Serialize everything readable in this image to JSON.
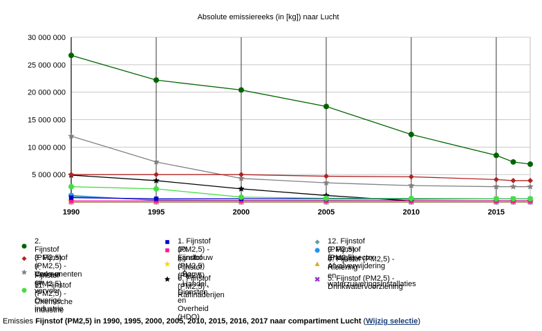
{
  "chart_data": {
    "type": "line",
    "title": "Absolute emissiereeks (in [kg]) naar Lucht",
    "xlabel": "",
    "ylabel": "",
    "x": [
      1990,
      1995,
      2000,
      2005,
      2010,
      2015,
      2016,
      2017
    ],
    "xlim": [
      1990,
      2017
    ],
    "xticks": [
      "1990",
      "1995",
      "2000",
      "2005",
      "2010",
      "2015"
    ],
    "ylim": [
      0,
      30000000
    ],
    "yticks": [
      "30 000 000",
      "25 000 000",
      "20 000 000",
      "15 000 000",
      "10 000 000",
      "5 000 000"
    ],
    "grid": true,
    "legend_position": "bottom",
    "series": [
      {
        "name": "2. Fijnstof (PM2,5) - Verkeer en vervoer",
        "color": "#006400",
        "marker": "circle",
        "values": [
          26700000,
          22200000,
          20400000,
          17400000,
          12300000,
          8500000,
          7300000,
          6900000
        ]
      },
      {
        "name": "3. Fijnstof (PM2,5) - Consumenten",
        "color": "#b22222",
        "marker": "diamond",
        "values": [
          5000000,
          5000000,
          5000000,
          4700000,
          4600000,
          4100000,
          3900000,
          3900000
        ]
      },
      {
        "name": "7. Fijnstof (PM2,5) - Overige industrie",
        "color": "#808080",
        "marker": "star",
        "values": [
          12000000,
          7300000,
          4300000,
          3500000,
          3000000,
          2800000,
          2800000,
          2800000
        ]
      },
      {
        "name": "11. Fijnstof (PM2,5) - Chemische Industrie",
        "color": "#44dd44",
        "marker": "circle",
        "values": [
          2800000,
          2400000,
          900000,
          700000,
          650000,
          600000,
          600000,
          600000
        ]
      },
      {
        "name": "1. Fijnstof (PM2,5) - Landbouw",
        "color": "#0000cc",
        "marker": "square",
        "values": [
          800000,
          600000,
          600000,
          600000,
          550000,
          600000,
          600000,
          600000
        ]
      },
      {
        "name": "10. Fijnstof (PM2,5) - Bouw",
        "color": "#ff1493",
        "marker": "square",
        "values": [
          200000,
          200000,
          200000,
          200000,
          200000,
          200000,
          200000,
          200000
        ]
      },
      {
        "name": "8. Fijnstof (PM2,5) - Handel, Diensten en Overheid (HDO)",
        "color": "#ffd700",
        "marker": "star",
        "values": [
          100000,
          100000,
          100000,
          100000,
          100000,
          100000,
          100000,
          100000
        ]
      },
      {
        "name": "6. Fijnstof (PM2,5) - Raffinaderijen",
        "color": "#000000",
        "marker": "star",
        "values": [
          4900000,
          3900000,
          2400000,
          1200000,
          200000,
          150000,
          150000,
          150000
        ]
      },
      {
        "name": "12. Fijnstof (PM2,5) - Energiesector",
        "color": "#5f9ea0",
        "marker": "diamond",
        "values": [
          1000000,
          400000,
          300000,
          300000,
          250000,
          250000,
          250000,
          250000
        ]
      },
      {
        "name": "9. Fijnstof (PM2,5) - Afvalverwijdering",
        "color": "#1e90ff",
        "marker": "circle",
        "values": [
          1200000,
          300000,
          200000,
          150000,
          100000,
          100000,
          100000,
          100000
        ]
      },
      {
        "name": "4. Fijnstof (PM2,5) - Riolering en waterzuiveringsinstallaties",
        "color": "#daa520",
        "marker": "triangle",
        "values": [
          50000,
          50000,
          50000,
          50000,
          50000,
          50000,
          50000,
          50000
        ]
      },
      {
        "name": "5. Fijnstof (PM2,5) - Drinkwatervoorziening",
        "color": "#9932cc",
        "marker": "cross",
        "values": [
          30000,
          30000,
          30000,
          30000,
          30000,
          30000,
          30000,
          30000
        ]
      }
    ]
  },
  "legend": {
    "col1": [
      {
        "label": "2. Fijnstof (PM2,5) - Verkeer en vervoer",
        "lines": [
          "2. Fijnstof (PM2,5) - Verkeer",
          "en vervoer"
        ],
        "color": "#006400",
        "icon": "circle"
      },
      {
        "label": "3. Fijnstof (PM2,5) - Consumenten",
        "lines": [
          "3. Fijnstof (PM2,5) - Consumenten"
        ],
        "color": "#b22222",
        "icon": "diamond"
      },
      {
        "label": "7. Fijnstof (PM2,5) - Overige industrie",
        "lines": [
          "7. Fijnstof (PM2,5) - Overige",
          "industrie"
        ],
        "color": "#808080",
        "icon": "star"
      },
      {
        "label": "11. Fijnstof (PM2,5) - Chemische Industrie",
        "lines": [
          "11. Fijnstof (PM2,5) - Chemische",
          "Industrie"
        ],
        "color": "#44dd44",
        "icon": "circle"
      }
    ],
    "col2": [
      {
        "label": "1. Fijnstof (PM2,5) - Landbouw",
        "lines": [
          "1. Fijnstof (PM2,5) - Landbouw"
        ],
        "color": "#0000cc",
        "icon": "square"
      },
      {
        "label": "10. Fijnstof (PM2,5) - Bouw",
        "lines": [
          "10. Fijnstof (PM2,5) - Bouw"
        ],
        "color": "#ff1493",
        "icon": "square"
      },
      {
        "label": "8. Fijnstof (PM2,5) - Handel, Diensten en Overheid (HDO)",
        "lines": [
          "8. Fijnstof (PM2,5) - Handel,",
          "Diensten en Overheid (HDO)"
        ],
        "color": "#ffd700",
        "icon": "star"
      },
      {
        "label": "6. Fijnstof (PM2,5) - Raffinaderijen",
        "lines": [
          "6. Fijnstof (PM2,5) - Raffinaderijen"
        ],
        "color": "#000000",
        "icon": "star"
      }
    ],
    "col3": [
      {
        "label": "12. Fijnstof (PM2,5) - Energiesector",
        "lines": [
          "12. Fijnstof (PM2,5) - Energiesector"
        ],
        "color": "#5f9ea0",
        "icon": "diamond"
      },
      {
        "label": "9. Fijnstof (PM2,5) - Afvalverwijdering",
        "lines": [
          "9. Fijnstof (PM2,5) - Afvalverwijdering"
        ],
        "color": "#1e90ff",
        "icon": "circle"
      },
      {
        "label": "4. Fijnstof (PM2,5) - Riolering en waterzuiveringsinstallaties",
        "lines": [
          "4. Fijnstof (PM2,5) - Riolering",
          "en waterzuiveringsinstallaties"
        ],
        "color": "#daa520",
        "icon": "triangle"
      },
      {
        "label": "5. Fijnstof (PM2,5) - Drinkwatervoorziening",
        "lines": [
          "5. Fijnstof (PM2,5) - Drinkwatervoorziening"
        ],
        "color": "#9932cc",
        "icon": "cross"
      }
    ]
  },
  "caption": {
    "prefix": "Emissies ",
    "substance": "Fijnstof (PM2,5)",
    "middle": " in 1990, 1995, 2000, 2005, 2010, 2015, 2016, 2017 naar compartiment ",
    "compartment": "Lucht",
    "paren_open": " (",
    "link_label": "Wijzig selectie",
    "paren_close": ")"
  }
}
